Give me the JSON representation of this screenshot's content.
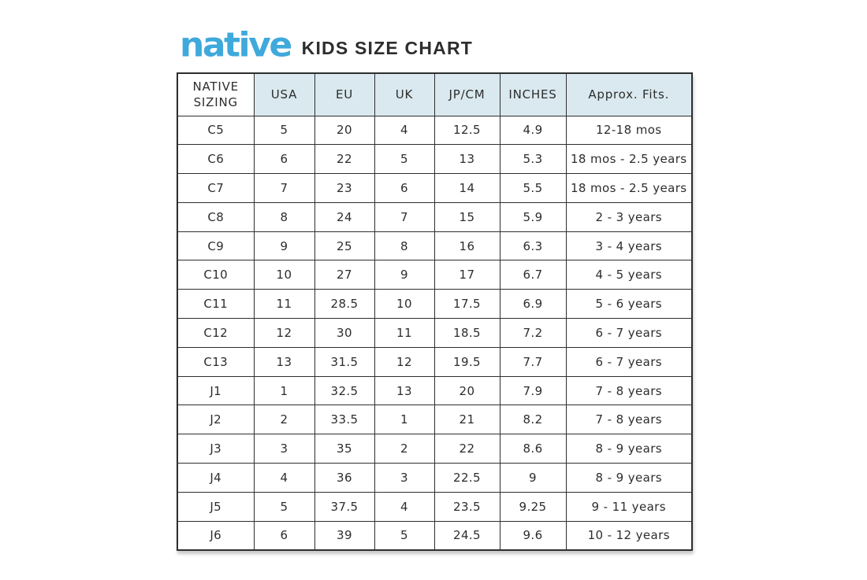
{
  "header": {
    "brand": "native",
    "title": "KIDS SIZE CHART"
  },
  "colors": {
    "brand_blue": "#3fa9dc",
    "header_blue": "#d9e9ef",
    "text_dark": "#2d2d2d",
    "border_dark": "#2e2e2e"
  },
  "chart_data": {
    "type": "table",
    "title": "KIDS SIZE CHART",
    "columns": [
      "NATIVE SIZING",
      "USA",
      "EU",
      "UK",
      "JP/CM",
      "INCHES",
      "Approx. Fits."
    ],
    "rows": [
      [
        "C5",
        "5",
        "20",
        "4",
        "12.5",
        "4.9",
        "12-18 mos"
      ],
      [
        "C6",
        "6",
        "22",
        "5",
        "13",
        "5.3",
        "18 mos - 2.5 years"
      ],
      [
        "C7",
        "7",
        "23",
        "6",
        "14",
        "5.5",
        "18 mos - 2.5 years"
      ],
      [
        "C8",
        "8",
        "24",
        "7",
        "15",
        "5.9",
        "2 - 3 years"
      ],
      [
        "C9",
        "9",
        "25",
        "8",
        "16",
        "6.3",
        "3 - 4 years"
      ],
      [
        "C10",
        "10",
        "27",
        "9",
        "17",
        "6.7",
        "4 - 5 years"
      ],
      [
        "C11",
        "11",
        "28.5",
        "10",
        "17.5",
        "6.9",
        "5 - 6 years"
      ],
      [
        "C12",
        "12",
        "30",
        "11",
        "18.5",
        "7.2",
        "6 - 7 years"
      ],
      [
        "C13",
        "13",
        "31.5",
        "12",
        "19.5",
        "7.7",
        "6 - 7 years"
      ],
      [
        "J1",
        "1",
        "32.5",
        "13",
        "20",
        "7.9",
        "7 - 8 years"
      ],
      [
        "J2",
        "2",
        "33.5",
        "1",
        "21",
        "8.2",
        "7 - 8 years"
      ],
      [
        "J3",
        "3",
        "35",
        "2",
        "22",
        "8.6",
        "8 - 9 years"
      ],
      [
        "J4",
        "4",
        "36",
        "3",
        "22.5",
        "9",
        "8 - 9 years"
      ],
      [
        "J5",
        "5",
        "37.5",
        "4",
        "23.5",
        "9.25",
        "9 - 11 years"
      ],
      [
        "J6",
        "6",
        "39",
        "5",
        "24.5",
        "9.6",
        "10 - 12 years"
      ]
    ]
  }
}
